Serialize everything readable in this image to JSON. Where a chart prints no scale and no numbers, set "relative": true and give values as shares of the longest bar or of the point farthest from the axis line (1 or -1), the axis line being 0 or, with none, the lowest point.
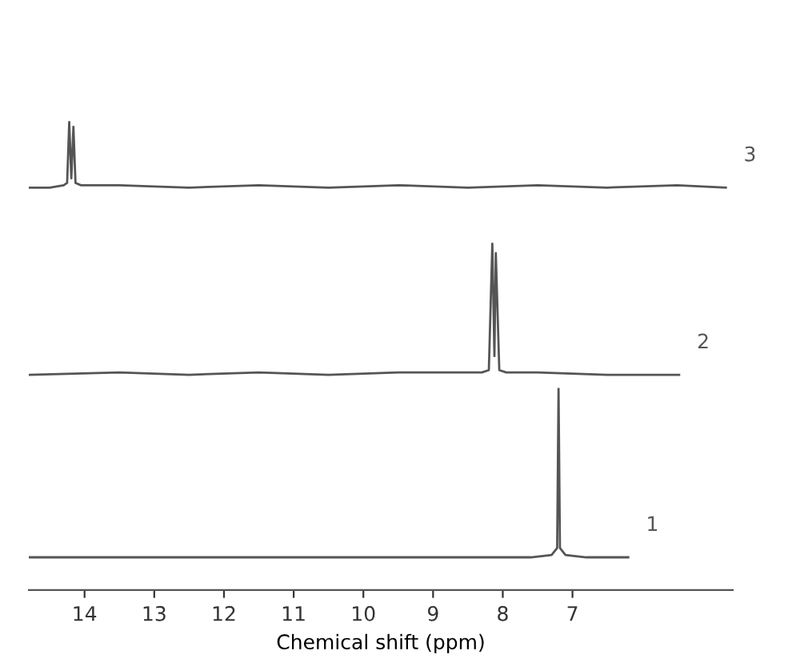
{
  "chart_data": {
    "type": "line",
    "relative": true,
    "xlim": [
      14.8,
      4.7
    ],
    "xticks": [
      14,
      13,
      12,
      11,
      10,
      9,
      8,
      7
    ],
    "xlabel": "Chemical shift (ppm)",
    "tick_labels": "x",
    "legend": false,
    "grid": false,
    "series": [
      {
        "name": "1",
        "color": "#555555",
        "x": [
          14.8,
          13.5,
          12.5,
          11.5,
          10.5,
          9.5,
          8.5,
          7.6,
          7.3,
          7.22,
          7.2,
          7.18,
          7.1,
          6.8,
          6.2
        ],
        "values": [
          0.07,
          0.07,
          0.07,
          0.07,
          0.07,
          0.07,
          0.07,
          0.07,
          0.075,
          0.09,
          0.43,
          0.09,
          0.075,
          0.07,
          0.07
        ]
      },
      {
        "name": "2",
        "color": "#555555",
        "x": [
          14.8,
          13.5,
          12.5,
          11.5,
          10.5,
          9.5,
          8.6,
          8.3,
          8.2,
          8.15,
          8.12,
          8.1,
          8.05,
          7.95,
          7.5,
          6.5,
          5.47
        ],
        "values": [
          0.46,
          0.465,
          0.46,
          0.465,
          0.46,
          0.465,
          0.465,
          0.465,
          0.47,
          0.74,
          0.5,
          0.72,
          0.47,
          0.465,
          0.465,
          0.46,
          0.46
        ]
      },
      {
        "name": "3",
        "color": "#555555",
        "x": [
          14.8,
          14.5,
          14.3,
          14.25,
          14.22,
          14.19,
          14.16,
          14.13,
          14.05,
          13.5,
          12.5,
          11.5,
          10.5,
          9.5,
          8.5,
          7.5,
          6.5,
          5.5,
          4.8
        ],
        "values": [
          0.86,
          0.86,
          0.865,
          0.87,
          1,
          0.88,
          0.99,
          0.87,
          0.865,
          0.865,
          0.86,
          0.865,
          0.86,
          0.865,
          0.86,
          0.865,
          0.86,
          0.865,
          0.86
        ]
      }
    ]
  }
}
